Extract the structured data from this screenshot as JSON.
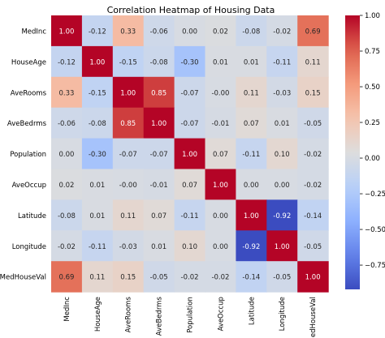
{
  "chart_data": {
    "type": "heatmap",
    "title": "Correlation Heatmap of Housing Data",
    "xlabel": "",
    "ylabel": "",
    "variables": [
      "MedInc",
      "HouseAge",
      "AveRooms",
      "AveBedrms",
      "Population",
      "AveOccup",
      "Latitude",
      "Longitude",
      "MedHouseVal"
    ],
    "matrix": [
      [
        1.0,
        -0.12,
        0.33,
        -0.06,
        0.0,
        0.02,
        -0.08,
        -0.02,
        0.69
      ],
      [
        -0.12,
        1.0,
        -0.15,
        -0.08,
        -0.3,
        0.01,
        0.01,
        -0.11,
        0.11
      ],
      [
        0.33,
        -0.15,
        1.0,
        0.85,
        -0.07,
        -0.0,
        0.11,
        -0.03,
        0.15
      ],
      [
        -0.06,
        -0.08,
        0.85,
        1.0,
        -0.07,
        -0.01,
        0.07,
        0.01,
        -0.05
      ],
      [
        0.0,
        -0.3,
        -0.07,
        -0.07,
        1.0,
        0.07,
        -0.11,
        0.1,
        -0.02
      ],
      [
        0.02,
        0.01,
        -0.0,
        -0.01,
        0.07,
        1.0,
        0.0,
        0.0,
        -0.02
      ],
      [
        -0.08,
        0.01,
        0.11,
        0.07,
        -0.11,
        0.0,
        1.0,
        -0.92,
        -0.14
      ],
      [
        -0.02,
        -0.11,
        -0.03,
        0.01,
        0.1,
        0.0,
        -0.92,
        1.0,
        -0.05
      ],
      [
        0.69,
        0.11,
        0.15,
        -0.05,
        -0.02,
        -0.02,
        -0.14,
        -0.05,
        1.0
      ]
    ],
    "colormap": "coolwarm",
    "color_range": [
      -0.92,
      1.0
    ],
    "colorbar_ticks": [
      -0.75,
      -0.5,
      -0.25,
      0.0,
      0.25,
      0.5,
      0.75,
      1.0
    ],
    "colorbar_tick_labels": [
      "−0.75",
      "−0.50",
      "−0.25",
      "0.00",
      "0.25",
      "0.50",
      "0.75",
      "1.00"
    ],
    "annotation_format": "2f",
    "grid": false,
    "legend": "colorbar-right"
  }
}
